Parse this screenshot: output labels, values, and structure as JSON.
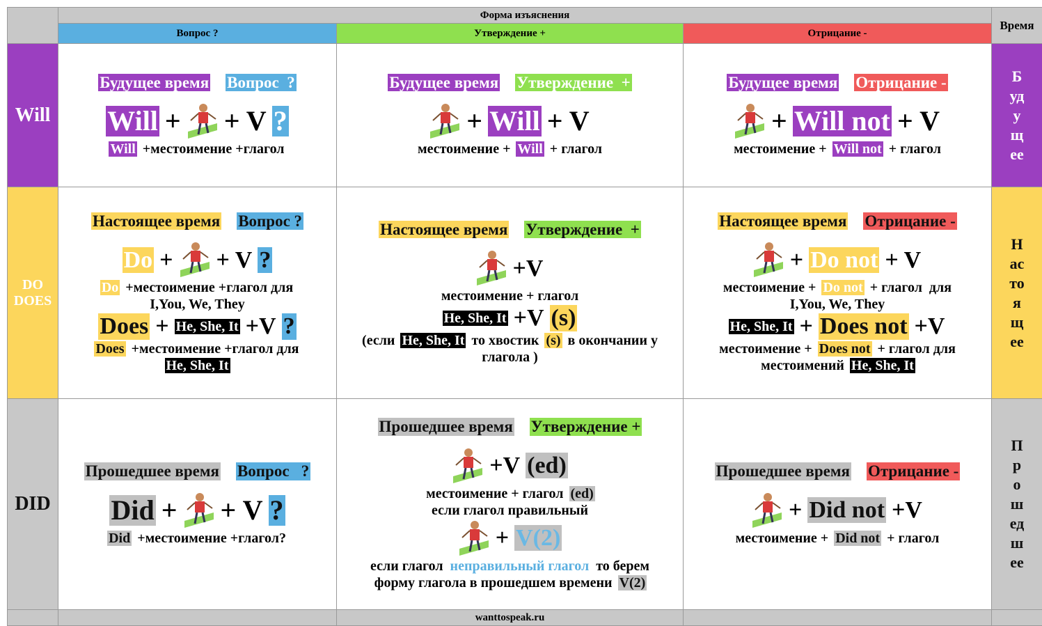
{
  "header": {
    "title": "Форма изъяснения",
    "columns": [
      "Вопрос ?",
      "Утверждение +",
      "Отрицание -"
    ],
    "time": "Время"
  },
  "rows": [
    {
      "label": [
        "Will"
      ],
      "time": "Будущее",
      "cells": [
        [
          [
            "Будущее время",
            "Вопрос  ?"
          ],
          [
            "Will",
            "+",
            "+ V",
            "?"
          ],
          [
            "Will",
            "+местоимение +глагол"
          ]
        ],
        [
          [
            "Будущее время",
            "Утверждение  +"
          ],
          [
            "+",
            "Will",
            "+ V"
          ],
          [
            "местоимение +",
            "Will",
            "+ глагол"
          ]
        ],
        [
          [
            "Будущее время",
            "Отрицание -"
          ],
          [
            "+",
            "Will not",
            "+ V"
          ],
          [
            "местоимение +",
            "Will not",
            "+ глагол"
          ]
        ]
      ]
    },
    {
      "label": [
        "DO",
        "DOES"
      ],
      "time": "Настоящее",
      "cells": [
        [
          [
            "Настоящее время",
            "Вопрос ?"
          ],
          [
            "Do",
            "+",
            "+ V",
            "?"
          ],
          [
            "Do",
            "+местоимение +глагол для"
          ],
          [
            "I,You, We, They"
          ],
          [
            "Does",
            "+",
            "He, She, It",
            "+V",
            "?"
          ],
          [
            "Does",
            "+местоимение +глагол для"
          ],
          [
            "He, She, It"
          ]
        ],
        [
          [
            "Настоящее время",
            "Утверждение  +"
          ],
          [
            "+V"
          ],
          [
            "местоимение + глагол"
          ],
          [
            "He, She, It",
            "+V",
            "(s)"
          ],
          [
            "(если",
            "He, She, It",
            "то хвостик",
            "(s)",
            "в окончании у"
          ],
          [
            "глагола )"
          ]
        ],
        [
          [
            "Настоящее время",
            "Отрицание -"
          ],
          [
            "+",
            "Do not",
            "+ V"
          ],
          [
            "местоимение +",
            "Do not",
            "+ глагол  для"
          ],
          [
            "I,You, We, They"
          ],
          [
            "He, She, It",
            "+",
            "Does not",
            "+V"
          ],
          [
            "местоимение +",
            "Does not",
            "+ глагол для"
          ],
          [
            "местоимений",
            "He, She, It"
          ]
        ]
      ]
    },
    {
      "label": [
        "DID"
      ],
      "time": "Прошедшее",
      "cells": [
        [
          [
            "Прошедшее время",
            "Вопрос   ?"
          ],
          [
            "Did",
            "+",
            "+ V",
            "?"
          ],
          [
            "Did",
            "+местоимение +глагол?"
          ]
        ],
        [
          [
            "Прошедшее время",
            "Утверждение +"
          ],
          [
            "+V",
            "(ed)"
          ],
          [
            "местоимение + глагол",
            "(ed)"
          ],
          [
            "если глагол правильный"
          ],
          [
            "+",
            "V(2)"
          ],
          [
            "если глагол",
            "неправильный глагол",
            "то берем"
          ],
          [
            "форму глагола в прошедшем времени",
            "V(2)"
          ]
        ],
        [
          [
            "Прошедшее время",
            "Отрицание -"
          ],
          [
            "+",
            "Did not",
            "+V"
          ],
          [
            "местоимение +",
            "Did not",
            "+ глагол"
          ]
        ]
      ]
    }
  ],
  "footer": "wanttospeak.ru"
}
